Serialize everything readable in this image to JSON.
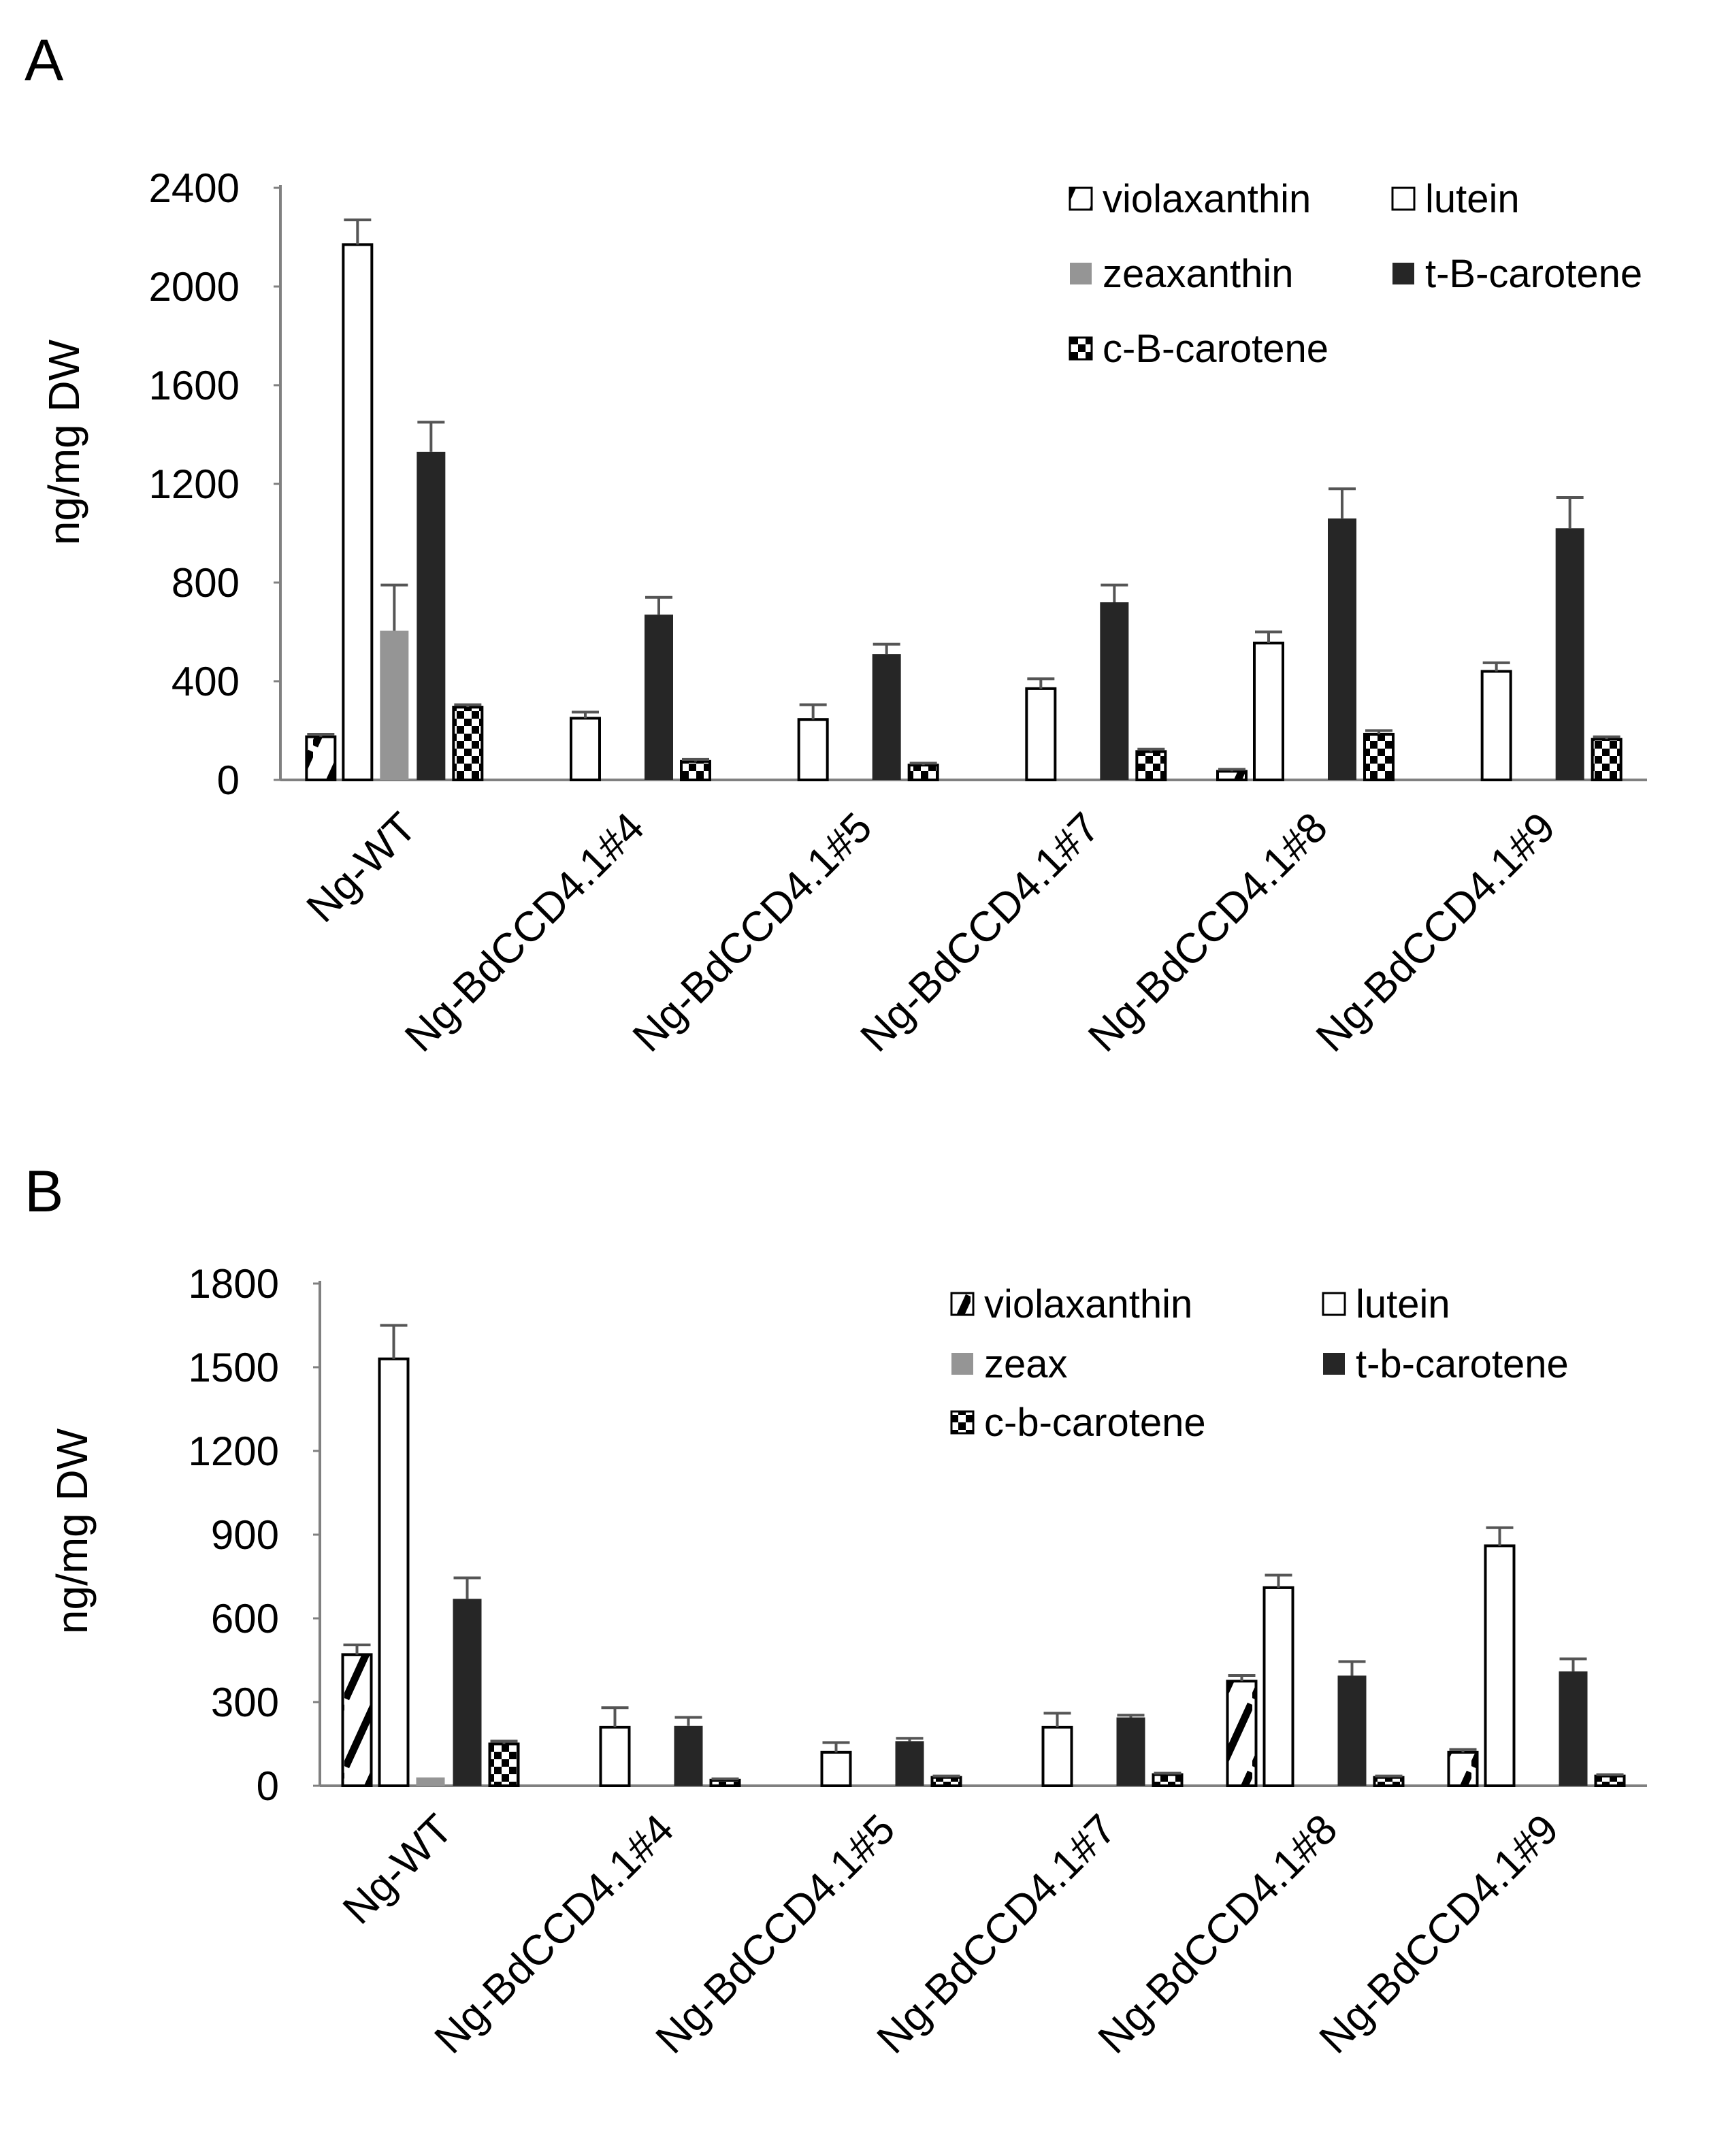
{
  "colors": {
    "lutein": "#ffffff",
    "zeaxanthin": "#959595",
    "t_carotene": "#262626",
    "axis": "#808080",
    "outline": "#000000",
    "error": "#555555"
  },
  "chart_data": [
    {
      "panel": "A",
      "type": "bar",
      "ylabel": "ng/mg DW",
      "xlabel": "",
      "ylim": [
        0,
        2400
      ],
      "yticks": [
        "0",
        "400",
        "800",
        "1200",
        "1600",
        "2000",
        "2400"
      ],
      "categories": [
        "Ng-WT",
        "Ng-BdCCD4.1#4",
        "Ng-BdCCD4.1#5",
        "Ng-BdCCD4.1#7",
        "Ng-BdCCD4.1#8",
        "Ng-BdCCD4.1#9"
      ],
      "legend_position": "top-right",
      "series": [
        {
          "name": "violaxanthin",
          "pattern": "diagonal",
          "values": [
            175,
            0,
            0,
            0,
            35,
            0
          ],
          "errors": [
            10,
            0,
            0,
            0,
            8,
            0
          ]
        },
        {
          "name": "lutein",
          "pattern": "white",
          "values": [
            2170,
            250,
            245,
            370,
            555,
            440
          ],
          "errors": [
            100,
            25,
            60,
            40,
            45,
            35
          ]
        },
        {
          "name": "zeaxanthin",
          "pattern": "gray",
          "values": [
            605,
            0,
            0,
            0,
            0,
            0
          ],
          "errors": [
            185,
            0,
            0,
            0,
            0,
            0
          ]
        },
        {
          "name": "t-B-carotene",
          "pattern": "black",
          "values": [
            1330,
            670,
            510,
            720,
            1060,
            1020
          ],
          "errors": [
            120,
            70,
            40,
            70,
            120,
            125
          ]
        },
        {
          "name": "c-B-carotene",
          "pattern": "checker",
          "values": [
            295,
            75,
            60,
            115,
            185,
            165
          ],
          "errors": [
            10,
            8,
            8,
            10,
            15,
            10
          ]
        }
      ]
    },
    {
      "panel": "B",
      "type": "bar",
      "ylabel": "ng/mg DW",
      "xlabel": "",
      "ylim": [
        0,
        1800
      ],
      "yticks": [
        "0",
        "300",
        "600",
        "900",
        "1200",
        "1500",
        "1800"
      ],
      "categories": [
        "Ng-WT",
        "Ng-BdCCD4.1#4",
        "Ng-BdCCD4.1#5",
        "Ng-BdCCD4.1#7",
        "Ng-BdCCD4.1#8",
        "Ng-BdCCD4.1#9"
      ],
      "legend_position": "top-right",
      "series": [
        {
          "name": "violaxanthin",
          "pattern": "diagonal",
          "values": [
            470,
            0,
            0,
            0,
            375,
            120
          ],
          "errors": [
            35,
            0,
            0,
            0,
            20,
            10
          ]
        },
        {
          "name": "lutein",
          "pattern": "white",
          "values": [
            1530,
            210,
            120,
            210,
            710,
            860
          ],
          "errors": [
            120,
            70,
            35,
            50,
            45,
            65
          ]
        },
        {
          "name": "zeax",
          "pattern": "gray",
          "values": [
            30,
            0,
            0,
            0,
            0,
            0
          ],
          "errors": [
            0,
            0,
            0,
            0,
            0,
            0
          ]
        },
        {
          "name": "t-b-carotene",
          "pattern": "black",
          "values": [
            670,
            215,
            160,
            245,
            395,
            410
          ],
          "errors": [
            75,
            30,
            10,
            8,
            50,
            45
          ]
        },
        {
          "name": "c-b-carotene",
          "pattern": "checker",
          "values": [
            150,
            20,
            30,
            40,
            30,
            35
          ],
          "errors": [
            10,
            5,
            5,
            5,
            5,
            5
          ]
        }
      ]
    }
  ]
}
